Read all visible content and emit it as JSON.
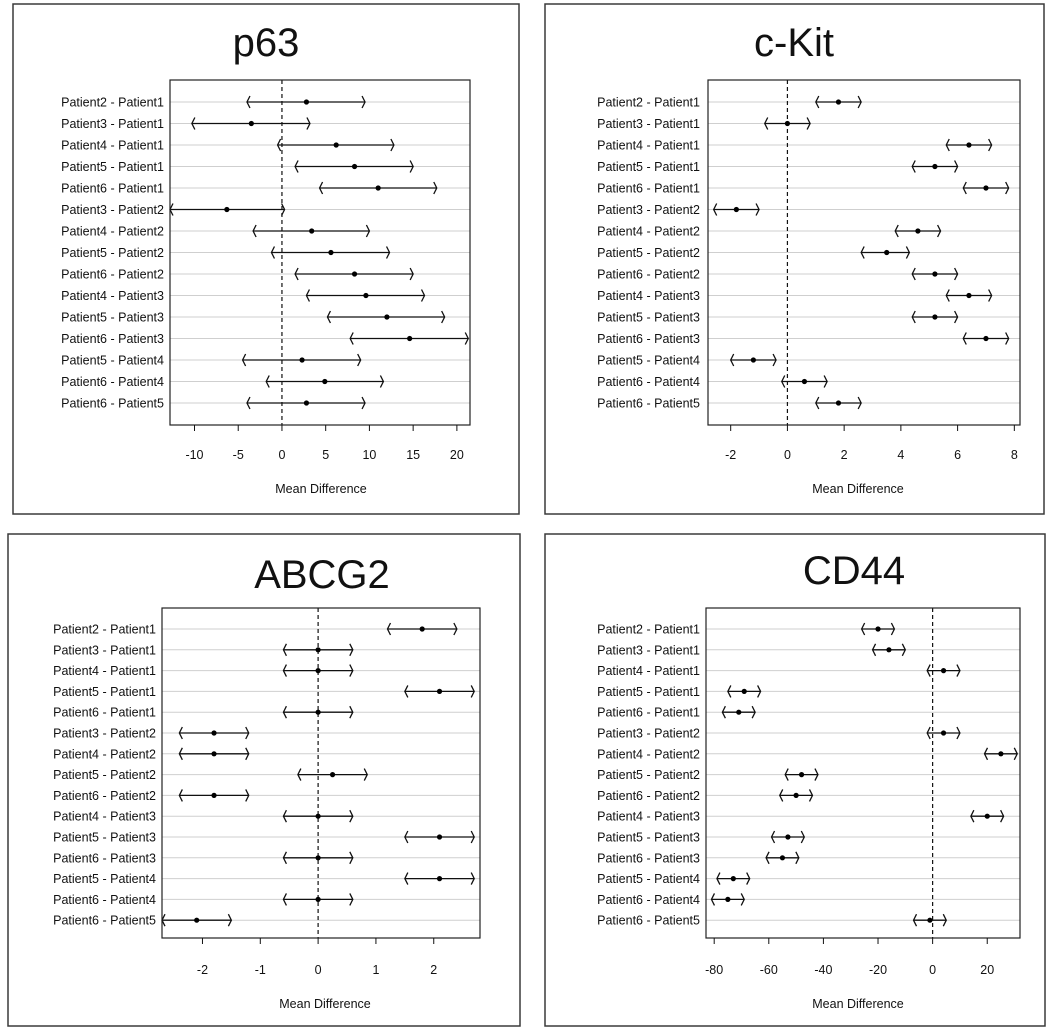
{
  "comparisons": [
    "Patient2 - Patient1",
    "Patient3 - Patient1",
    "Patient4 - Patient1",
    "Patient5 - Patient1",
    "Patient6 - Patient1",
    "Patient3 - Patient2",
    "Patient4 - Patient2",
    "Patient5 - Patient2",
    "Patient6 - Patient2",
    "Patient4 - Patient3",
    "Patient5 - Patient3",
    "Patient6 - Patient3",
    "Patient5 - Patient4",
    "Patient6 - Patient4",
    "Patient6 - Patient5"
  ],
  "chart_data": [
    {
      "type": "scatter",
      "title": "p63",
      "xlabel": "Mean Difference",
      "xlim": [
        -12.8,
        21.5
      ],
      "xticks": [
        -10,
        -5,
        0,
        5,
        10,
        15,
        20
      ],
      "reference_line": 0,
      "estimates": [
        2.8,
        -3.5,
        6.2,
        8.3,
        11.0,
        -6.3,
        3.4,
        5.6,
        8.3,
        9.6,
        12.0,
        14.6,
        2.3,
        4.9,
        2.8
      ],
      "lower": [
        -4.0,
        -10.3,
        -0.5,
        1.5,
        4.3,
        -12.8,
        -3.3,
        -1.2,
        1.5,
        2.8,
        5.2,
        7.8,
        -4.5,
        -1.8,
        -4.0
      ],
      "upper": [
        9.5,
        3.2,
        12.8,
        15.0,
        17.7,
        0.3,
        10.0,
        12.3,
        15.0,
        16.3,
        18.6,
        21.3,
        9.0,
        11.6,
        9.5
      ]
    },
    {
      "type": "scatter",
      "title": "c-Kit",
      "xlabel": "Mean Difference",
      "xlim": [
        -2.8,
        8.2
      ],
      "xticks": [
        -2,
        0,
        2,
        4,
        6,
        8
      ],
      "reference_line": 0,
      "estimates": [
        1.8,
        0.0,
        6.4,
        5.2,
        7.0,
        -1.8,
        4.6,
        3.5,
        5.2,
        6.4,
        5.2,
        7.0,
        -1.2,
        0.6,
        1.8
      ],
      "lower": [
        1.0,
        -0.8,
        5.6,
        4.4,
        6.2,
        -2.6,
        3.8,
        2.6,
        4.4,
        5.6,
        4.4,
        6.2,
        -2.0,
        -0.2,
        1.0
      ],
      "upper": [
        2.6,
        0.8,
        7.2,
        6.0,
        7.8,
        -1.0,
        5.4,
        4.3,
        6.0,
        7.2,
        6.0,
        7.8,
        -0.4,
        1.4,
        2.6
      ]
    },
    {
      "type": "scatter",
      "title": "ABCG2",
      "xlabel": "Mean Difference",
      "xlim": [
        -2.7,
        2.8
      ],
      "xticks": [
        -2,
        -1,
        0,
        1,
        2
      ],
      "reference_line": 0,
      "estimates": [
        1.8,
        0.0,
        0.0,
        2.1,
        0.0,
        -1.8,
        -1.8,
        0.25,
        -1.8,
        0.0,
        2.1,
        0.0,
        2.1,
        0.0,
        -2.1
      ],
      "lower": [
        1.2,
        -0.6,
        -0.6,
        1.5,
        -0.6,
        -2.4,
        -2.4,
        -0.35,
        -2.4,
        -0.6,
        1.5,
        -0.6,
        1.5,
        -0.6,
        -2.7
      ],
      "upper": [
        2.4,
        0.6,
        0.6,
        2.7,
        0.6,
        -1.2,
        -1.2,
        0.85,
        -1.2,
        0.6,
        2.7,
        0.6,
        2.7,
        0.6,
        -1.5
      ]
    },
    {
      "type": "scatter",
      "title": "CD44",
      "xlabel": "Mean Difference",
      "xlim": [
        -83,
        32
      ],
      "xticks": [
        -80,
        -60,
        -40,
        -20,
        0,
        20
      ],
      "reference_line": 0,
      "estimates": [
        -20,
        -16,
        4,
        -69,
        -71,
        4,
        25,
        -48,
        -50,
        20,
        -53,
        -55,
        -73,
        -75,
        -1
      ],
      "lower": [
        -26,
        -22,
        -2,
        -75,
        -77,
        -2,
        19,
        -54,
        -56,
        14,
        -59,
        -61,
        -79,
        -81,
        -7
      ],
      "upper": [
        -14,
        -10,
        10,
        -63,
        -65,
        10,
        31,
        -42,
        -44,
        26,
        -47,
        -49,
        -67,
        -69,
        5
      ]
    }
  ]
}
